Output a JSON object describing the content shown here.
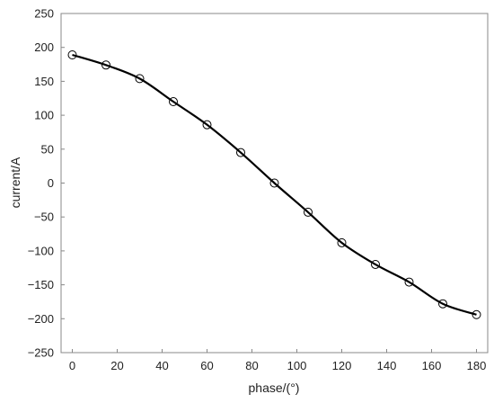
{
  "chart_data": {
    "type": "line",
    "title": "",
    "xlabel": "phase/(°)",
    "ylabel": "current/A",
    "xlim": [
      -5,
      185
    ],
    "ylim": [
      -250,
      250
    ],
    "x_ticks": [
      0,
      20,
      40,
      60,
      80,
      100,
      120,
      140,
      160,
      180
    ],
    "y_ticks": [
      250,
      200,
      150,
      100,
      50,
      0,
      -50,
      -100,
      -150,
      -200,
      -250
    ],
    "y_tick_labels": [
      "250",
      "200",
      "150",
      "100",
      "50",
      "0",
      "−50",
      "−100",
      "−150",
      "−200",
      "−250"
    ],
    "grid": false,
    "series": [
      {
        "x": [
          0,
          15,
          30,
          45,
          60,
          75,
          90,
          105,
          120,
          135,
          150,
          165,
          180
        ],
        "y": [
          189,
          174,
          154,
          120,
          86,
          45,
          0,
          -43,
          -88,
          -120,
          -146,
          -178,
          -194
        ],
        "line_color": "#000000",
        "marker": "open-circle"
      }
    ]
  }
}
